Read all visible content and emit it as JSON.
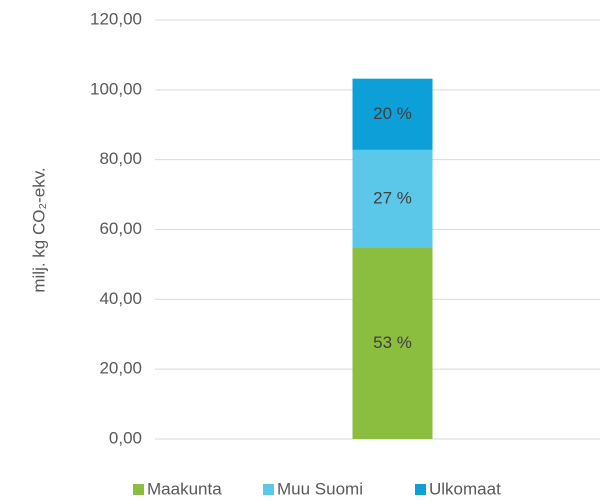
{
  "chart_data": {
    "type": "stacked_bar",
    "y_label": "milj. kg CO₂-ekv.",
    "categories": [
      null
    ],
    "series": [
      {
        "name": "Maakunta",
        "color": "#8bbd3f",
        "values": [
          54.7
        ],
        "value_labels": [
          "53 %"
        ]
      },
      {
        "name": "Muu Suomi",
        "color": "#5bc8ea",
        "values": [
          28.1
        ],
        "value_labels": [
          "27 %"
        ]
      },
      {
        "name": "Ulkomaat",
        "color": "#0d9fd8",
        "values": [
          20.4
        ],
        "value_labels": [
          "20 %"
        ]
      }
    ],
    "ylim": [
      0,
      120
    ],
    "yticks": [
      {
        "value": 0,
        "label": "0,00"
      },
      {
        "value": 20,
        "label": "20,00"
      },
      {
        "value": 40,
        "label": "40,00"
      },
      {
        "value": 60,
        "label": "60,00"
      },
      {
        "value": 80,
        "label": "80,00"
      },
      {
        "value": 100,
        "label": "100,00"
      },
      {
        "value": 120,
        "label": "120,00"
      }
    ],
    "grid": true,
    "legend": "bottom"
  }
}
